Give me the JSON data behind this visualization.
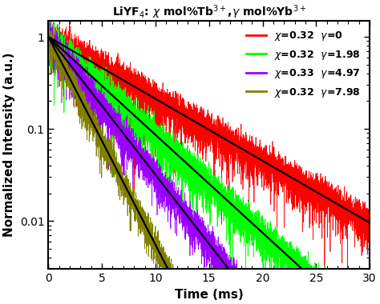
{
  "title": "LiYF$_4$: $\\chi$ mol%Tb$^{3+}$,$\\gamma$ mol%Yb$^{3+}$",
  "xlabel": "Time (ms)",
  "ylabel": "Normalized Intensity (a.u.)",
  "xlim": [
    0,
    30
  ],
  "ylim": [
    0.003,
    1.5
  ],
  "curves": [
    {
      "color": "#ff0000",
      "decay_rate": 0.155,
      "noise_amp": 0.25,
      "label": "$\\chi$=0.32  $\\gamma$=0"
    },
    {
      "color": "#00ff00",
      "decay_rate": 0.245,
      "noise_amp": 0.25,
      "label": "$\\chi$=0.32  $\\gamma$=1.98"
    },
    {
      "color": "#9900ff",
      "decay_rate": 0.345,
      "noise_amp": 0.22,
      "label": "$\\chi$=0.33  $\\gamma$=4.97"
    },
    {
      "color": "#808000",
      "decay_rate": 0.52,
      "noise_amp": 0.2,
      "label": "$\\chi$=0.32  $\\gamma$=7.98"
    }
  ],
  "fit_color": "#000000",
  "fit_linewidth": 1.6,
  "noise_linewidth": 0.5,
  "n_points": 6000,
  "background_color": "#ffffff",
  "title_fontsize": 10,
  "label_fontsize": 11,
  "tick_fontsize": 10,
  "legend_fontsize": 9
}
